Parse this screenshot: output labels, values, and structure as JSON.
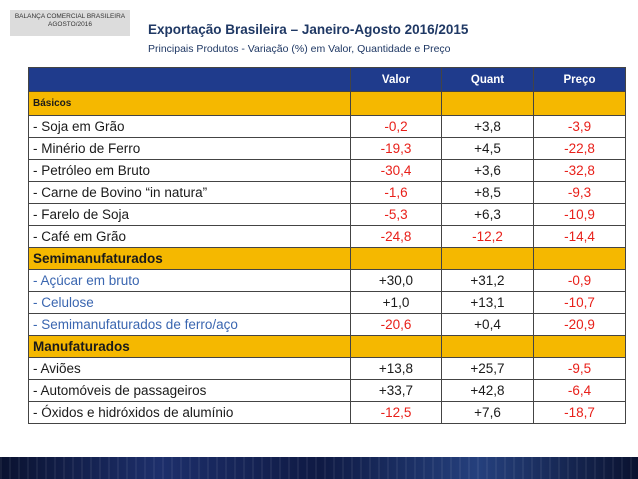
{
  "corner_label": {
    "line1": "BALANÇA COMERCIAL BRASILEIRA",
    "line2": "AGOSTO/2016"
  },
  "title": "Exportação Brasileira – Janeiro-Agosto 2016/2015",
  "subtitle": "Principais  Produtos - Variação (%) em Valor, Quantidade e Preço",
  "table": {
    "headers": [
      "",
      "Valor",
      "Quant",
      "Preço"
    ],
    "sections": [
      {
        "name": "Básicos",
        "rows": [
          {
            "label": "- Soja em Grão",
            "valor": "-0,2",
            "quant": "+3,8",
            "preco": "-3,9"
          },
          {
            "label": "- Minério de Ferro",
            "valor": "-19,3",
            "quant": "+4,5",
            "preco": "-22,8"
          },
          {
            "label": "- Petróleo em Bruto",
            "valor": "-30,4",
            "quant": "+3,6",
            "preco": "-32,8"
          },
          {
            "label": "- Carne de Bovino “in natura”",
            "valor": "-1,6",
            "quant": "+8,5",
            "preco": "-9,3"
          },
          {
            "label": "- Farelo de Soja",
            "valor": "-5,3",
            "quant": "+6,3",
            "preco": "-10,9"
          },
          {
            "label": "- Café em Grão",
            "valor": "-24,8",
            "quant": "-12,2",
            "preco": "-14,4"
          }
        ]
      },
      {
        "name": "Semimanufaturados",
        "rows": [
          {
            "label": "- Açúcar em bruto",
            "valor": "+30,0",
            "quant": "+31,2",
            "preco": "-0,9"
          },
          {
            "label": "- Celulose",
            "valor": "+1,0",
            "quant": "+13,1",
            "preco": "-10,7"
          },
          {
            "label": "- Semimanufaturados de ferro/aço",
            "valor": "-20,6",
            "quant": "+0,4",
            "preco": "-20,9"
          }
        ]
      },
      {
        "name": "Manufaturados",
        "rows": [
          {
            "label": "- Aviões",
            "valor": "+13,8",
            "quant": "+25,7",
            "preco": "-9,5"
          },
          {
            "label": "- Automóveis de passageiros",
            "valor": "+33,7",
            "quant": "+42,8",
            "preco": "-6,4"
          },
          {
            "label": "- Óxidos e hidróxidos de alumínio",
            "valor": "-12,5",
            "quant": "+7,6",
            "preco": "-18,7"
          }
        ]
      }
    ]
  },
  "colors": {
    "header_bg": "#1f3b8c",
    "section_bg": "#f5b800",
    "negative": "#e8201a",
    "positive": "#1a1a1a",
    "semi_label": "#3a66b0"
  }
}
